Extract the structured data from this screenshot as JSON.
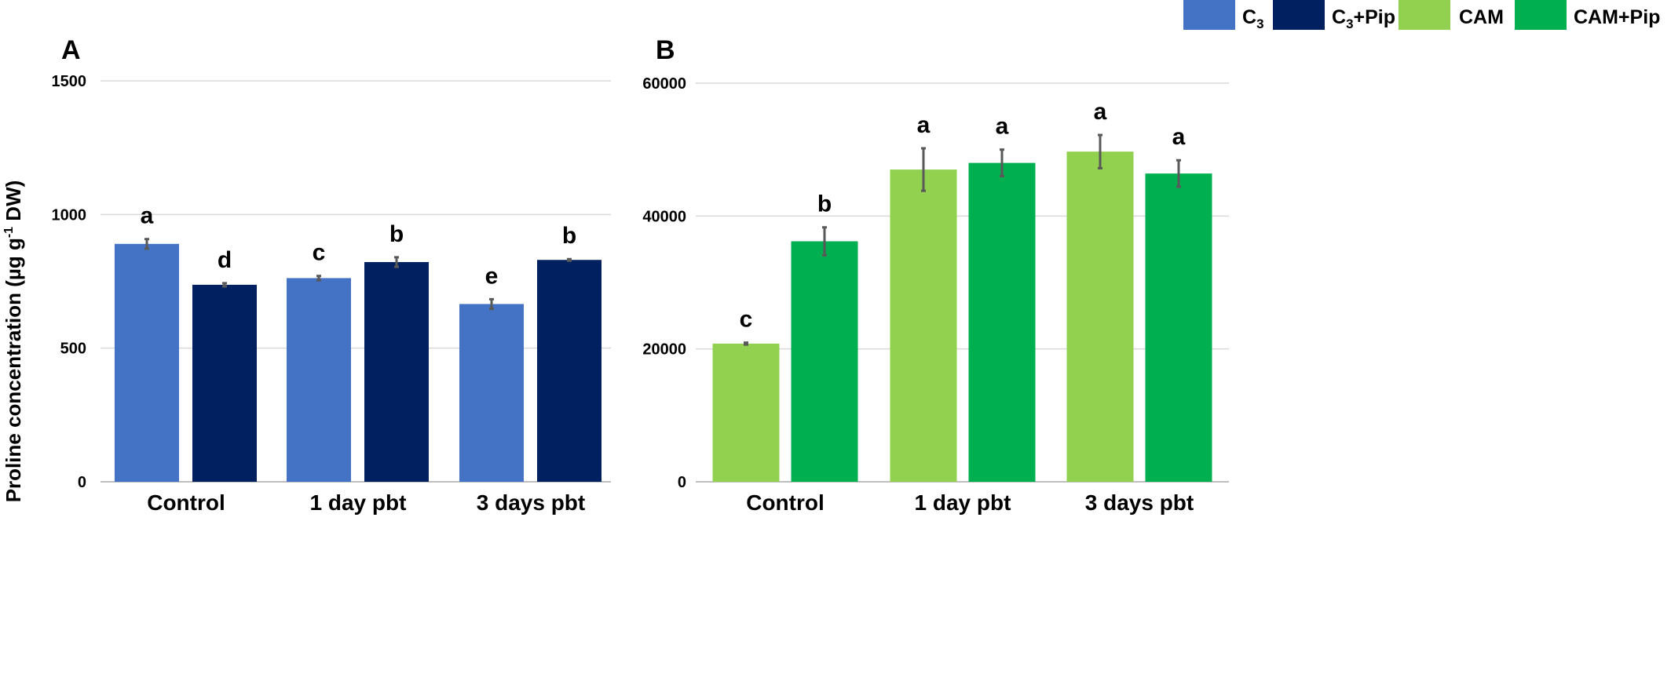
{
  "figure": {
    "ylabel_main": "Proline concentration (µg g",
    "ylabel_sup": "-1",
    "ylabel_tail": " DW)"
  },
  "legend": [
    {
      "label": "C",
      "sub": "3",
      "tail": "",
      "color": "#4472c4"
    },
    {
      "label": "C",
      "sub": "3",
      "tail": "+Pip",
      "color": "#002060"
    },
    {
      "label": "CAM",
      "sub": "",
      "tail": "",
      "color": "#92d050"
    },
    {
      "label": "CAM+Pip",
      "sub": "",
      "tail": "",
      "color": "#00b050"
    }
  ],
  "chart_data": [
    {
      "type": "bar",
      "panel_label": "A",
      "categories": [
        "Control",
        "1 day pbt",
        "3 days pbt"
      ],
      "ylim": [
        0,
        1500
      ],
      "yticks": [
        0,
        500,
        1000,
        1500
      ],
      "grid": true,
      "series": [
        {
          "name": "C3",
          "color": "#4472c4",
          "values": [
            890,
            762,
            665
          ],
          "errors": [
            18,
            8,
            18
          ],
          "letters": [
            "a",
            "c",
            "e"
          ]
        },
        {
          "name": "C3+Pip",
          "color": "#002060",
          "values": [
            737,
            822,
            830
          ],
          "errors": [
            6,
            18,
            3
          ],
          "letters": [
            "d",
            "b",
            "b"
          ]
        }
      ]
    },
    {
      "type": "bar",
      "panel_label": "B",
      "categories": [
        "Control",
        "1 day pbt",
        "3 days pbt"
      ],
      "ylim": [
        0,
        60000
      ],
      "yticks": [
        0,
        20000,
        40000,
        60000
      ],
      "grid": true,
      "series": [
        {
          "name": "CAM",
          "color": "#92d050",
          "values": [
            20800,
            47000,
            49700
          ],
          "errors": [
            150,
            3200,
            2500
          ],
          "letters": [
            "c",
            "a",
            "a"
          ]
        },
        {
          "name": "CAM+Pip",
          "color": "#00b050",
          "values": [
            36200,
            48000,
            46400
          ],
          "errors": [
            2100,
            2000,
            2000
          ],
          "letters": [
            "b",
            "a",
            "a"
          ]
        }
      ]
    }
  ]
}
